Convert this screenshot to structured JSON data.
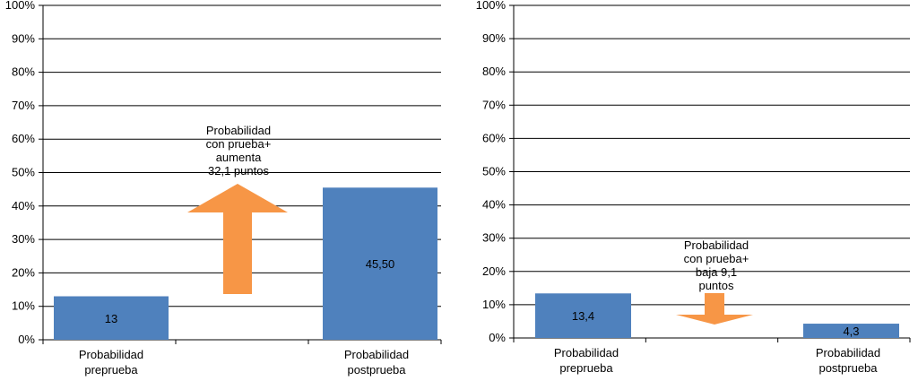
{
  "chart_data": [
    {
      "type": "bar",
      "categories": [
        "Probabilidad preprueba",
        "Probabilidad postprueba"
      ],
      "category_lines": [
        [
          "Probabilidad",
          "preprueba"
        ],
        [
          "Probabilidad",
          "postprueba"
        ]
      ],
      "values": [
        13,
        45.5
      ],
      "value_labels": [
        "13",
        "45,50"
      ],
      "ylim": [
        0,
        100
      ],
      "yticks": [
        "0%",
        "10%",
        "20%",
        "30%",
        "40%",
        "50%",
        "60%",
        "70%",
        "80%",
        "90%",
        "100%"
      ],
      "grid": true,
      "bar_color": "#4f81bd",
      "annotation": {
        "lines": [
          "Probabilidad",
          "con prueba+",
          "aumenta",
          "32,1 puntos"
        ],
        "arrow": "up",
        "arrow_color": "#f79646"
      }
    },
    {
      "type": "bar",
      "categories": [
        "Probabilidad preprueba",
        "Probabilidad postprueba"
      ],
      "category_lines": [
        [
          "Probabilidad",
          "preprueba"
        ],
        [
          "Probabilidad",
          "postprueba"
        ]
      ],
      "values": [
        13.4,
        4.3
      ],
      "value_labels": [
        "13,4",
        "4,3"
      ],
      "ylim": [
        0,
        100
      ],
      "yticks": [
        "0%",
        "10%",
        "20%",
        "30%",
        "40%",
        "50%",
        "60%",
        "70%",
        "80%",
        "90%",
        "100%"
      ],
      "grid": true,
      "bar_color": "#4f81bd",
      "annotation": {
        "lines": [
          "Probabilidad",
          "con prueba+",
          "baja 9,1",
          "puntos"
        ],
        "arrow": "down",
        "arrow_color": "#f79646"
      }
    }
  ]
}
